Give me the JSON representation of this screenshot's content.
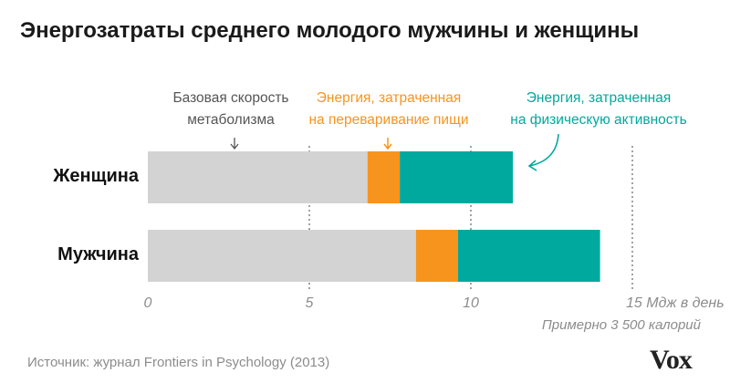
{
  "chart_data": {
    "type": "bar",
    "stacked": true,
    "orientation": "horizontal",
    "title": "Энергозатраты среднего молодого мужчины и женщины",
    "categories": [
      "Женщина",
      "Мужчина"
    ],
    "series": [
      {
        "name": "Базовая скорость метаболизма",
        "values": [
          6.8,
          8.3
        ],
        "color": "#d3d3d3"
      },
      {
        "name": "Энергия, затраченная на переваривание пищи",
        "values": [
          1.0,
          1.3
        ],
        "color": "#f7941d"
      },
      {
        "name": "Энергия, затраченная на физическую активность",
        "values": [
          3.5,
          4.4
        ],
        "color": "#00a99d"
      }
    ],
    "xlim": [
      0,
      15
    ],
    "xticks": [
      "0",
      "5",
      "10",
      "15"
    ],
    "xunit": "Мдж в день",
    "xsublabel": "Примерно 3 500 калорий",
    "grid": "vertical dashed",
    "source": "Источник: журнал Frontiers in Psychology (2013)"
  },
  "logo": "Vox"
}
